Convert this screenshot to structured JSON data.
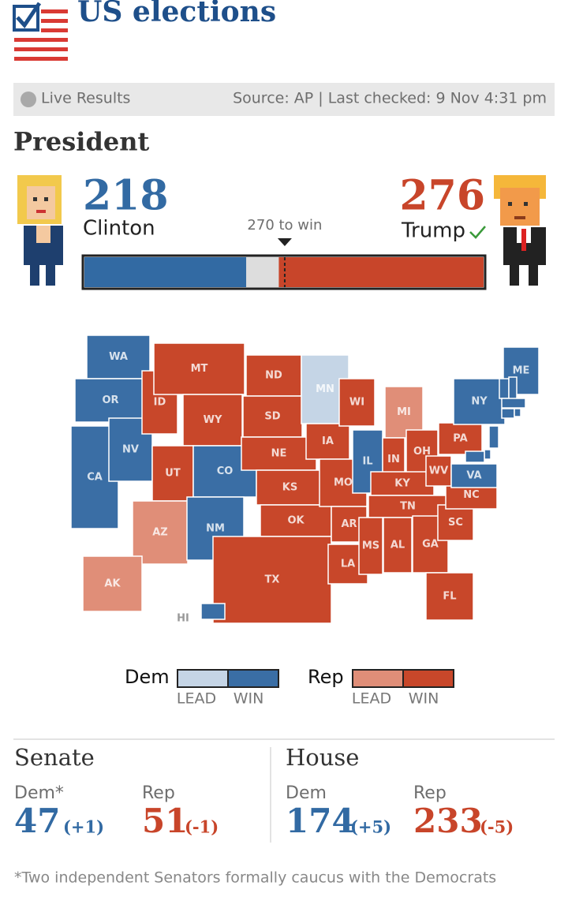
{
  "header": {
    "title": "US elections"
  },
  "status": {
    "live": "Live Results",
    "source": "Source: AP | Last checked: 9 Nov 4:31 pm"
  },
  "president": {
    "heading": "President",
    "clinton": {
      "votes": 218,
      "name": "Clinton",
      "color": "#326aa3"
    },
    "trump": {
      "votes": 276,
      "name": "Trump",
      "color": "#c8452a"
    },
    "threshold": {
      "value": 270,
      "label": "270 to win"
    },
    "xlim": [
      0,
      538
    ]
  },
  "map": {
    "colors": {
      "dem-win": "#3a6ea5",
      "dem-lead": "#c5d5e6",
      "rep-win": "#c8472a",
      "rep-lead": "#e08e78"
    },
    "states": [
      {
        "label": "WA",
        "result": "dem-win"
      },
      {
        "label": "OR",
        "result": "dem-win"
      },
      {
        "label": "CA",
        "result": "dem-win"
      },
      {
        "label": "NV",
        "result": "dem-win"
      },
      {
        "label": "ID",
        "result": "rep-win"
      },
      {
        "label": "MT",
        "result": "rep-win"
      },
      {
        "label": "WY",
        "result": "rep-win"
      },
      {
        "label": "UT",
        "result": "rep-win"
      },
      {
        "label": "AZ",
        "result": "rep-lead"
      },
      {
        "label": "CO",
        "result": "dem-win"
      },
      {
        "label": "NM",
        "result": "dem-win"
      },
      {
        "label": "ND",
        "result": "rep-win"
      },
      {
        "label": "SD",
        "result": "rep-win"
      },
      {
        "label": "NE",
        "result": "rep-win"
      },
      {
        "label": "KS",
        "result": "rep-win"
      },
      {
        "label": "OK",
        "result": "rep-win"
      },
      {
        "label": "TX",
        "result": "rep-win"
      },
      {
        "label": "MN",
        "result": "dem-lead"
      },
      {
        "label": "IA",
        "result": "rep-win"
      },
      {
        "label": "MO",
        "result": "rep-win"
      },
      {
        "label": "AR",
        "result": "rep-win"
      },
      {
        "label": "LA",
        "result": "rep-win"
      },
      {
        "label": "WI",
        "result": "rep-win"
      },
      {
        "label": "IL",
        "result": "dem-win"
      },
      {
        "label": "MI",
        "result": "rep-lead"
      },
      {
        "label": "IN",
        "result": "rep-win"
      },
      {
        "label": "OH",
        "result": "rep-win"
      },
      {
        "label": "KY",
        "result": "rep-win"
      },
      {
        "label": "TN",
        "result": "rep-win"
      },
      {
        "label": "MS",
        "result": "rep-win"
      },
      {
        "label": "AL",
        "result": "rep-win"
      },
      {
        "label": "GA",
        "result": "rep-win"
      },
      {
        "label": "FL",
        "result": "rep-win"
      },
      {
        "label": "SC",
        "result": "rep-win"
      },
      {
        "label": "NC",
        "result": "rep-win"
      },
      {
        "label": "WV",
        "result": "rep-win"
      },
      {
        "label": "VA",
        "result": "dem-win"
      },
      {
        "label": "PA",
        "result": "rep-win"
      },
      {
        "label": "NY",
        "result": "dem-win"
      },
      {
        "label": "ME",
        "result": "dem-win"
      },
      {
        "label": "AK",
        "result": "rep-lead"
      },
      {
        "label": "HI",
        "result": "dem-win"
      },
      {
        "label": null,
        "result": "dem-win"
      },
      {
        "label": null,
        "result": "dem-win"
      },
      {
        "label": null,
        "result": "dem-win"
      },
      {
        "label": null,
        "result": "dem-win"
      },
      {
        "label": null,
        "result": "dem-win"
      },
      {
        "label": null,
        "result": "dem-win"
      },
      {
        "label": null,
        "result": "dem-win"
      },
      {
        "label": null,
        "result": "dem-win"
      }
    ],
    "legend": {
      "dem": {
        "label": "Dem",
        "lead": "LEAD",
        "win": "WIN"
      },
      "rep": {
        "label": "Rep",
        "lead": "LEAD",
        "win": "WIN"
      }
    }
  },
  "senate": {
    "title": "Senate",
    "dem": {
      "label": "Dem*",
      "seats": 47,
      "change": "(+1)"
    },
    "rep": {
      "label": "Rep",
      "seats": 51,
      "change": "(-1)"
    }
  },
  "house": {
    "title": "House",
    "dem": {
      "label": "Dem",
      "seats": 174,
      "change": "(+5)"
    },
    "rep": {
      "label": "Rep",
      "seats": 233,
      "change": "(-5)"
    }
  },
  "footnote": "*Two independent Senators formally caucus with the Democrats"
}
